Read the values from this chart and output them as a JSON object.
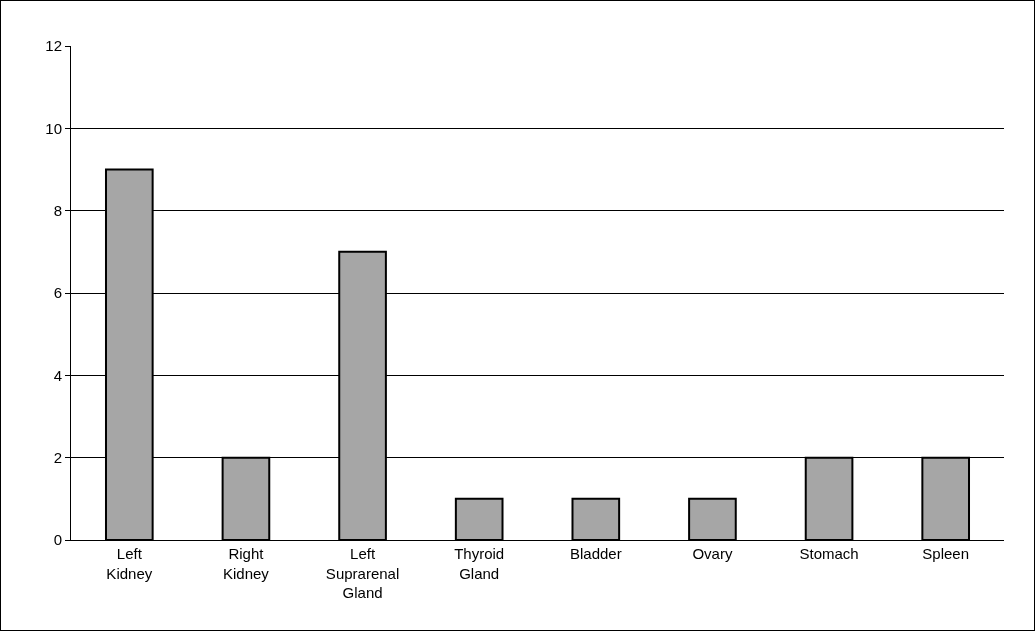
{
  "chart_data": {
    "type": "bar",
    "categories": [
      "Left Kidney",
      "Right Kidney",
      "Left Suprarenal Gland",
      "Thyroid Gland",
      "Bladder",
      "Ovary",
      "Stomach",
      "Spleen"
    ],
    "values": [
      9,
      2,
      7,
      1,
      1,
      1,
      2,
      2
    ],
    "color": "#a6a6a6",
    "ylim": [
      0,
      12
    ],
    "yticks": [
      0,
      2,
      4,
      6,
      8,
      10,
      12
    ],
    "grid": "y"
  }
}
